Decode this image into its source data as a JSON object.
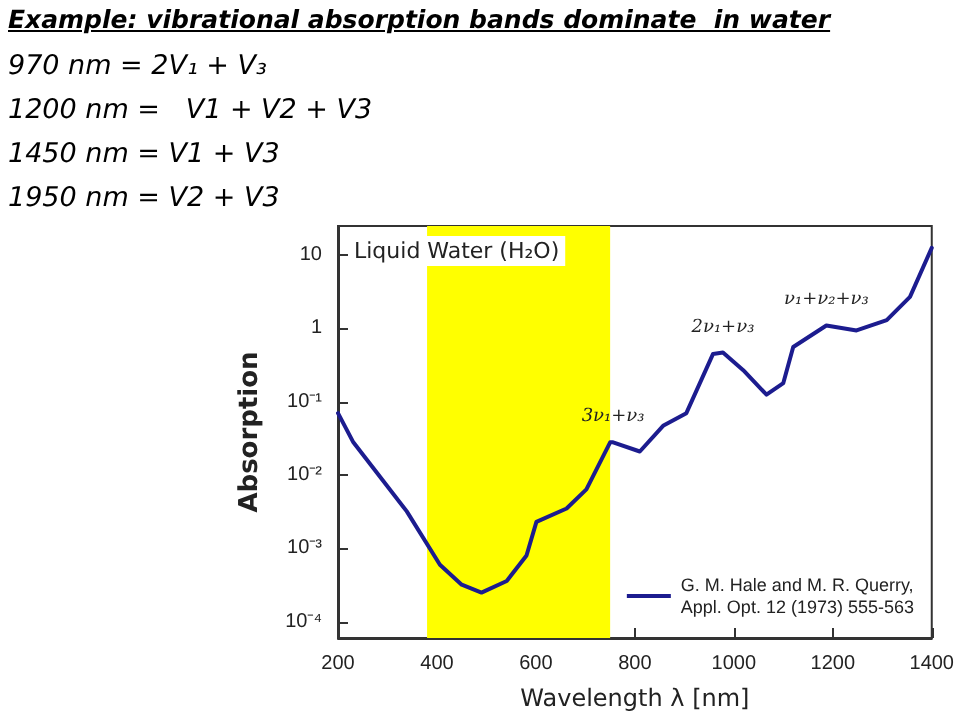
{
  "chart_data": {
    "type": "line",
    "title": "Example: vibrational absorption bands dominate  in water",
    "subtitle": "Liquid Water (H₂O)",
    "xlabel": "Wavelength λ [nm]",
    "ylabel": "Absorption",
    "annotations": [
      "970 nm = 2V₁ + V₃",
      "1200 nm =   V1 + V2 + V3",
      "1450 nm = V1 + V3",
      "1950 nm = V2 + V3",
      {
        "text": "3ν₁+ν₃",
        "x": 756,
        "y": 0.028
      },
      {
        "text": "2ν₁+ν₃",
        "x": 978,
        "y": 0.47
      },
      {
        "text": "ν₁+ν₂+ν₃",
        "x": 1187,
        "y": 1.1
      }
    ],
    "series": [
      {
        "name": "G. M. Hale and M. R. Querry,\nAppl. Opt. 12 (1973) 555-563",
        "color": "#1c1c8f",
        "x": [
          200,
          231,
          339,
          406,
          450,
          490,
          541,
          581,
          601,
          662,
          702,
          750,
          756,
          810,
          857,
          904,
          958,
          978,
          1019,
          1066,
          1100,
          1120,
          1187,
          1248,
          1309,
          1356,
          1400
        ],
        "values": [
          0.07,
          0.028,
          0.0032,
          0.0006,
          0.00032,
          0.00025,
          0.00036,
          0.0008,
          0.0023,
          0.0035,
          0.0064,
          0.028,
          0.028,
          0.021,
          0.047,
          0.07,
          0.45,
          0.47,
          0.27,
          0.125,
          0.18,
          0.56,
          1.1,
          0.94,
          1.3,
          2.7,
          12.6
        ]
      }
    ],
    "bands": [
      {
        "axis": "x",
        "from": 380,
        "to": 750,
        "color": "#ffff00"
      }
    ],
    "xlim": [
      200,
      1400
    ],
    "xticks": [
      200,
      400,
      600,
      800,
      1000,
      1200,
      1400
    ],
    "ylim": [
      6e-05,
      25
    ],
    "yticks": [
      {
        "value": 0.0001,
        "label": "10⁻⁴"
      },
      {
        "value": 0.001,
        "label": "10⁻³"
      },
      {
        "value": 0.01,
        "label": "10⁻²"
      },
      {
        "value": 0.1,
        "label": "10⁻¹"
      },
      1,
      10
    ],
    "log": "y",
    "grid": false,
    "legend": "bottom right",
    "marker": "none",
    "line_style": "solid"
  }
}
